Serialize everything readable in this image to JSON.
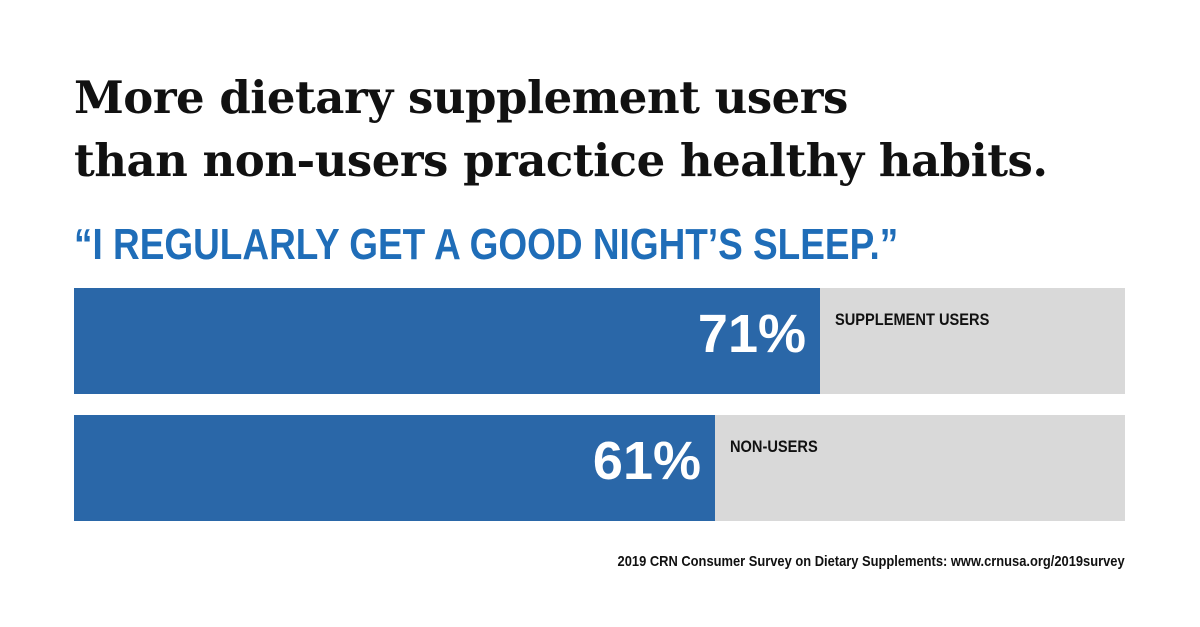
{
  "chart_data": {
    "type": "bar",
    "title_lines": [
      "More dietary supplement users",
      "than non-users practice healthy habits."
    ],
    "subtitle": "“I REGULARLY GET A GOOD NIGHT’S SLEEP.”",
    "categories": [
      "SUPPLEMENT USERS",
      "NON-USERS"
    ],
    "values": [
      71,
      61
    ],
    "value_labels": [
      "71%",
      "61%"
    ],
    "ylim": [
      0,
      100
    ],
    "orientation": "horizontal",
    "grid": false,
    "source": "2019 CRN Consumer Survey on Dietary Supplements: www.crnusa.org/2019survey"
  },
  "colors": {
    "bar": "#2a67a8",
    "track": "#d9d9d9",
    "subtitle": "#1f6db8",
    "title": "#111111"
  }
}
